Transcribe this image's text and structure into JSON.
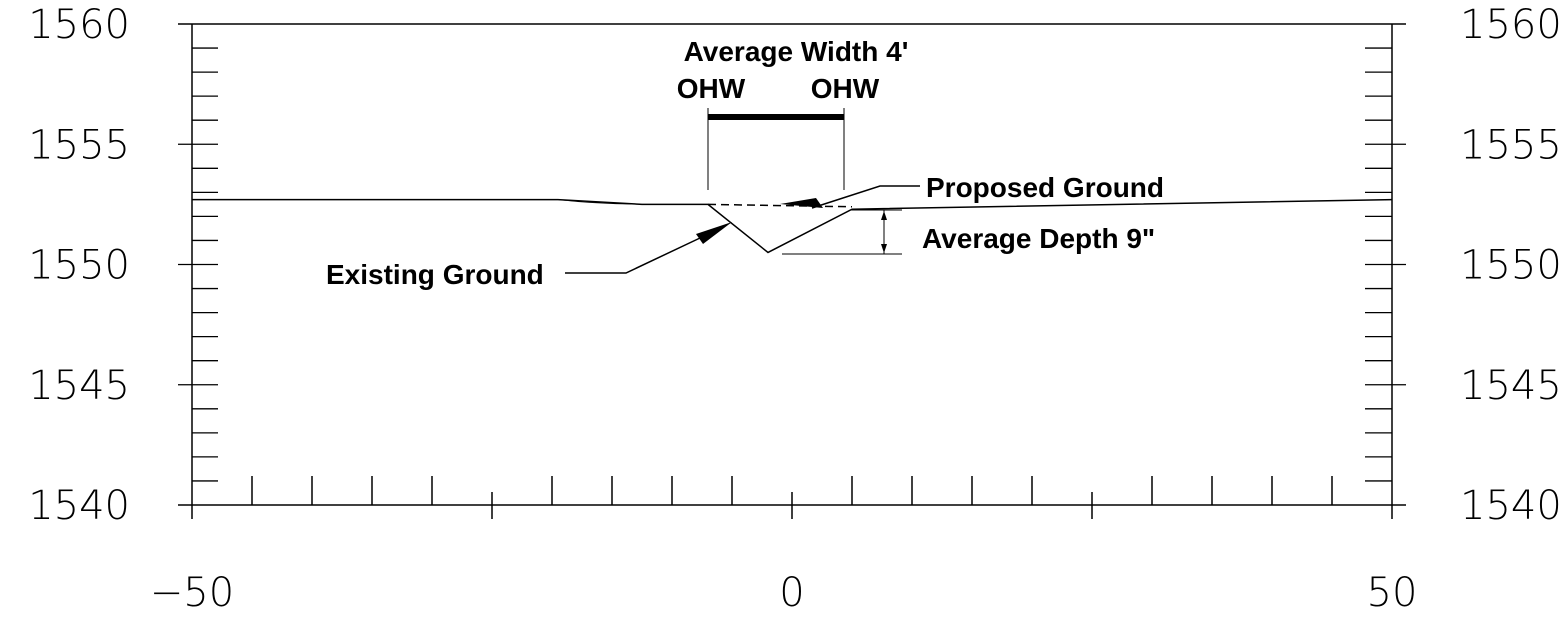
{
  "chart_data": {
    "type": "line",
    "title": "",
    "xlabel": "",
    "ylabel": "",
    "xlim": [
      -50,
      50
    ],
    "ylim": [
      1540,
      1560
    ],
    "x_tick_labels": [
      "-50",
      "0",
      "50"
    ],
    "y_tick_labels": [
      "1560",
      "1555",
      "1550",
      "1545",
      "1540"
    ],
    "y_tick_labels_right": [
      "1560",
      "1555",
      "1550",
      "1545",
      "1540"
    ],
    "grid": false,
    "series": [
      {
        "name": "Existing Ground",
        "style": "solid",
        "x": [
          -50,
          -19.5,
          -12.5,
          -7,
          -2,
          5,
          50
        ],
        "y": [
          1552.7,
          1552.7,
          1552.5,
          1552.5,
          1550.5,
          1552.3,
          1552.7
        ]
      },
      {
        "name": "Proposed Ground",
        "style": "dashed",
        "x": [
          -7,
          5
        ],
        "y": [
          1552.5,
          1552.4
        ]
      }
    ],
    "annotations": {
      "width_label": "Average Width 4'",
      "ohw_left": "OHW",
      "ohw_right": "OHW",
      "proposed_label": "Proposed Ground",
      "depth_label": "Average Depth 9\"",
      "existing_label": "Existing Ground"
    }
  }
}
